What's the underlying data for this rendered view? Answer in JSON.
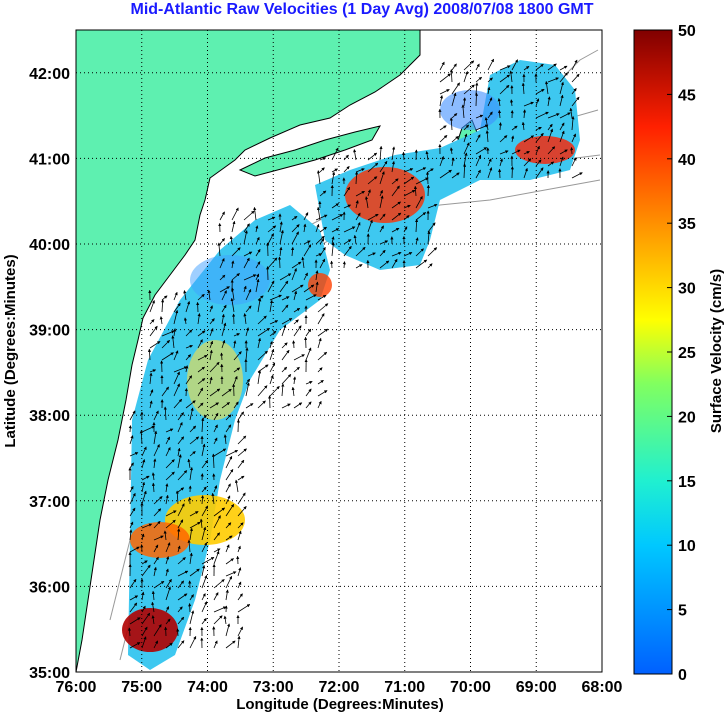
{
  "title": "Mid-Atlantic Raw Velocities (1 Day Avg) 2008/07/08 1800 GMT",
  "map": {
    "xlabel": "Longitude (Degrees:Minutes)",
    "ylabel": "Latitude (Degrees:Minutes)",
    "x_ticks": [
      "76:00",
      "75:00",
      "74:00",
      "73:00",
      "72:00",
      "71:00",
      "70:00",
      "69:00",
      "68:00"
    ],
    "y_ticks": [
      "35:00",
      "36:00",
      "37:00",
      "38:00",
      "39:00",
      "40:00",
      "41:00",
      "42:00"
    ],
    "lon_range": [
      -76,
      -68
    ],
    "lat_range": [
      35,
      42.5
    ],
    "grid": true,
    "land_color": "#5ef0b0",
    "water_color": "#ffffff",
    "contour_color": "#999999"
  },
  "colorbar": {
    "label": "Surface Velocity (cm/s)",
    "ticks": [
      "0",
      "5",
      "10",
      "15",
      "20",
      "25",
      "30",
      "35",
      "40",
      "45",
      "50"
    ],
    "range": [
      0,
      50
    ],
    "colors": [
      "#0060ff",
      "#00c8ff",
      "#20f0d0",
      "#80ff60",
      "#ffff00",
      "#ff9000",
      "#ff2000",
      "#800000"
    ]
  }
}
